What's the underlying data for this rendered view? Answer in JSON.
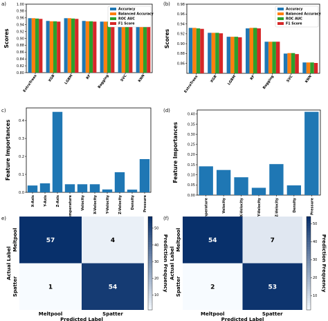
{
  "panel_labels": [
    "a)",
    "(b)",
    "c)",
    "(d)",
    "e)",
    "(f)"
  ],
  "colors": {
    "Accuracy": "#1f77b4",
    "Balanced Accuracy": "#ff7f0e",
    "ROC AUC": "#2ca02c",
    "F1 Score": "#d62728",
    "importance": "#1f77b4",
    "cm_dark": "#08306b",
    "cm_light": "#f7fbff"
  },
  "chart_data": [
    {
      "id": "a",
      "type": "bar",
      "ylabel": "Scores",
      "xlabel": "",
      "ylim": [
        0.8,
        1.0
      ],
      "yticks": [
        "0.80",
        "0.82",
        "0.84",
        "0.86",
        "0.88",
        "0.90",
        "0.92",
        "0.94",
        "0.96",
        "0.98",
        "1.00"
      ],
      "ytick_values": [
        0.8,
        0.82,
        0.84,
        0.86,
        0.88,
        0.9,
        0.92,
        0.94,
        0.96,
        0.98,
        1.0
      ],
      "legend": "top-right",
      "categories": [
        "ExtraTrees",
        "XGB",
        "LGBM",
        "RF",
        "Bagging",
        "SVC",
        "KNN"
      ],
      "series": [
        {
          "name": "Accuracy",
          "values": [
            0.959,
            0.951,
            0.959,
            0.951,
            0.949,
            0.941,
            0.94
          ]
        },
        {
          "name": "Balanced Accuracy",
          "values": [
            0.959,
            0.95,
            0.959,
            0.95,
            0.949,
            0.941,
            0.94
          ]
        },
        {
          "name": "ROC AUC",
          "values": [
            0.958,
            0.95,
            0.958,
            0.95,
            0.949,
            0.94,
            0.94
          ]
        },
        {
          "name": "F1 Score",
          "values": [
            0.957,
            0.949,
            0.957,
            0.949,
            0.948,
            0.94,
            0.94
          ]
        }
      ]
    },
    {
      "id": "b",
      "type": "bar",
      "ylabel": "Scores",
      "xlabel": "",
      "ylim": [
        0.84,
        0.98
      ],
      "yticks": [
        "0.86",
        "0.88",
        "0.90",
        "0.92",
        "0.94",
        "0.96",
        "0.98"
      ],
      "ytick_values": [
        0.86,
        0.88,
        0.9,
        0.92,
        0.94,
        0.96,
        0.98
      ],
      "legend": "top-right",
      "categories": [
        "ExtraTrees",
        "XGB",
        "LGBM",
        "RF",
        "Bagging",
        "SVC",
        "KNN"
      ],
      "series": [
        {
          "name": "Accuracy",
          "values": [
            0.932,
            0.922,
            0.914,
            0.931,
            0.904,
            0.88,
            0.862
          ]
        },
        {
          "name": "Balanced Accuracy",
          "values": [
            0.932,
            0.922,
            0.914,
            0.932,
            0.904,
            0.881,
            0.862
          ]
        },
        {
          "name": "ROC AUC",
          "values": [
            0.931,
            0.922,
            0.914,
            0.932,
            0.904,
            0.881,
            0.862
          ]
        },
        {
          "name": "F1 Score",
          "values": [
            0.93,
            0.921,
            0.913,
            0.931,
            0.904,
            0.879,
            0.861
          ]
        }
      ]
    },
    {
      "id": "c",
      "type": "bar",
      "ylabel": "Feature Importances",
      "xlabel": "",
      "ylim": [
        0,
        0.47
      ],
      "yticks": [
        "0.0",
        "0.1",
        "0.2",
        "0.3",
        "0.4"
      ],
      "ytick_values": [
        0.0,
        0.1,
        0.2,
        0.3,
        0.4
      ],
      "categories": [
        "X-Axis",
        "Y-Axis",
        "Z-Axis",
        "Temperature",
        "Velocity",
        "X-Velocity",
        "Y-Velocity",
        "Z-Velocity",
        "Density",
        "Pressure"
      ],
      "values": [
        0.038,
        0.05,
        0.448,
        0.045,
        0.045,
        0.045,
        0.016,
        0.112,
        0.015,
        0.185
      ]
    },
    {
      "id": "d",
      "type": "bar",
      "ylabel": "Feature Importances",
      "xlabel": "",
      "ylim": [
        0,
        0.42
      ],
      "yticks": [
        "0.00",
        "0.05",
        "0.10",
        "0.15",
        "0.20",
        "0.25",
        "0.30",
        "0.35",
        "0.40"
      ],
      "ytick_values": [
        0.0,
        0.05,
        0.1,
        0.15,
        0.2,
        0.25,
        0.3,
        0.35,
        0.4
      ],
      "categories": [
        "Temperature",
        "Velocity",
        "X-Velocity",
        "Y-Velocity",
        "Z-Velocity",
        "Density",
        "Pressure"
      ],
      "values": [
        0.142,
        0.124,
        0.088,
        0.036,
        0.153,
        0.048,
        0.411
      ]
    },
    {
      "id": "e",
      "type": "heatmap",
      "xlabel": "Predicted Label",
      "ylabel": "Actual Label",
      "colorbar_label": "Prediction Frequency",
      "colorbar_ticks": [
        "10",
        "20",
        "30",
        "40",
        "50"
      ],
      "colorbar_tick_values": [
        10,
        20,
        30,
        40,
        50
      ],
      "colorbar_range": [
        1,
        57
      ],
      "x_categories": [
        "Meltpool",
        "Spatter"
      ],
      "y_categories": [
        "Meltpool",
        "Spatter"
      ],
      "matrix": [
        [
          57,
          4
        ],
        [
          1,
          54
        ]
      ]
    },
    {
      "id": "f",
      "type": "heatmap",
      "xlabel": "Predicted Label",
      "ylabel": "Actual Label",
      "colorbar_label": "Prediction Frequency",
      "colorbar_ticks": [
        "10",
        "20",
        "30",
        "40",
        "50"
      ],
      "colorbar_tick_values": [
        10,
        20,
        30,
        40,
        50
      ],
      "colorbar_range": [
        2,
        54
      ],
      "x_categories": [
        "Meltpool",
        "Spatter"
      ],
      "y_categories": [
        "Meltpool",
        "Spatter"
      ],
      "matrix": [
        [
          54,
          7
        ],
        [
          2,
          53
        ]
      ]
    }
  ]
}
